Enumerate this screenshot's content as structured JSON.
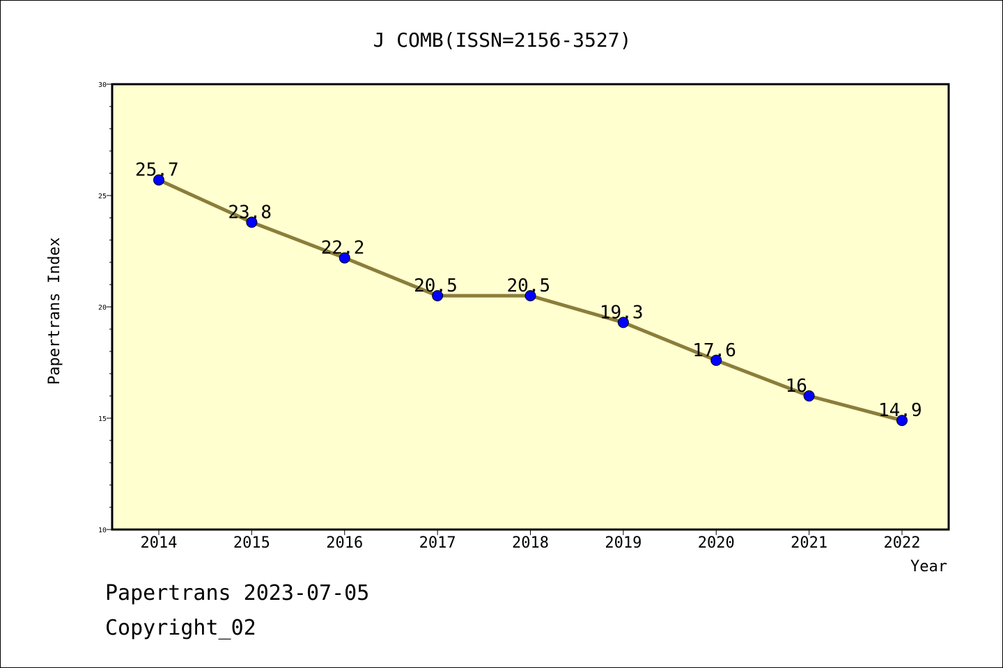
{
  "footer": {
    "line1": "Papertrans 2023-07-05",
    "line2": "Copyright_02"
  },
  "colors": {
    "plot_background": "#FFFFD0",
    "line": "#8B7D3A",
    "marker": "#0000FF"
  },
  "chart_data": {
    "type": "line",
    "title": "J COMB(ISSN=2156-3527)",
    "xlabel": "Year",
    "ylabel": "Papertrans Index",
    "ylim": [
      10,
      30
    ],
    "yticks": [
      10,
      15,
      20,
      25,
      30
    ],
    "grid": false,
    "categories": [
      "2014",
      "2015",
      "2016",
      "2017",
      "2018",
      "2019",
      "2020",
      "2021",
      "2022"
    ],
    "values": [
      25.7,
      23.8,
      22.2,
      20.5,
      20.5,
      19.3,
      17.6,
      16,
      14.9
    ],
    "data_labels": [
      "25.7",
      "23.8",
      "22.2",
      "20.5",
      "20.5",
      "19.3",
      "17.6",
      "16",
      "14.9"
    ]
  }
}
